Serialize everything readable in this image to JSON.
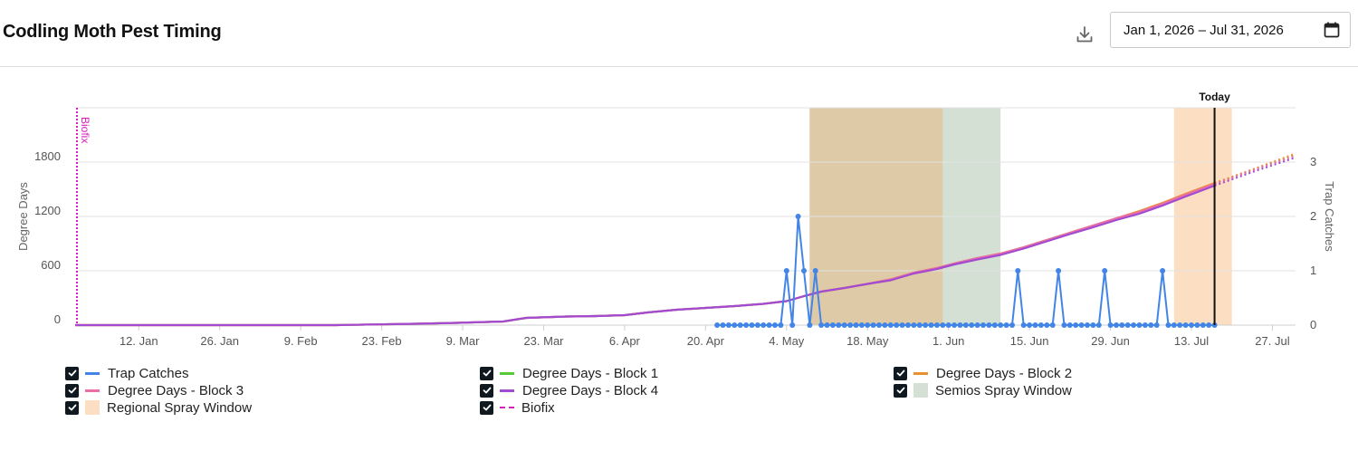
{
  "header": {
    "title": "Codling Moth Pest Timing",
    "date_range": "Jan 1, 2026 – Jul 31, 2026"
  },
  "chart_data": {
    "type": "line",
    "x_type": "date",
    "xlim": [
      "2026-01-01",
      "2026-07-31"
    ],
    "x_tick_labels": [
      "12. Jan",
      "26. Jan",
      "9. Feb",
      "23. Feb",
      "9. Mar",
      "23. Mar",
      "6. Apr",
      "20. Apr",
      "4. May",
      "18. May",
      "1. Jun",
      "15. Jun",
      "29. Jun",
      "13. Jul",
      "27. Jul"
    ],
    "x_ticks": [
      "2026-01-12",
      "2026-01-26",
      "2026-02-09",
      "2026-02-23",
      "2026-03-09",
      "2026-03-23",
      "2026-04-06",
      "2026-04-20",
      "2026-05-04",
      "2026-05-18",
      "2026-06-01",
      "2026-06-15",
      "2026-06-29",
      "2026-07-13",
      "2026-07-27"
    ],
    "ylabel": "Degree Days",
    "ylim": [
      0,
      2400
    ],
    "y_ticks": [
      0,
      600,
      1200,
      1800
    ],
    "ylabel_right": "Trap Catches",
    "ylim_right": [
      0,
      4
    ],
    "y_ticks_right": [
      0,
      1,
      2,
      3
    ],
    "grid": true,
    "today": {
      "label": "Today",
      "date": "2026-07-17"
    },
    "biofix": {
      "label": "Biofix",
      "date": "2026-01-01"
    },
    "bands": [
      {
        "name": "Semios Spray Window",
        "start": "2026-05-08",
        "end": "2026-06-10",
        "color": "#d4e0d4"
      },
      {
        "name": "Regional Spray Window",
        "start": "2026-05-08",
        "end": "2026-05-31",
        "color": "#fcdfc3"
      },
      {
        "name": "Regional Spray Window",
        "start": "2026-07-10",
        "end": "2026-07-20",
        "color": "#fcdfc3"
      }
    ],
    "overlap_color": "#dfcaa8",
    "degree_days": {
      "dates": [
        "2026-01-01",
        "2026-02-15",
        "2026-03-01",
        "2026-03-08",
        "2026-03-16",
        "2026-03-20",
        "2026-03-27",
        "2026-04-01",
        "2026-04-06",
        "2026-04-10",
        "2026-04-15",
        "2026-04-20",
        "2026-04-25",
        "2026-04-30",
        "2026-05-04",
        "2026-05-07",
        "2026-05-10",
        "2026-05-14",
        "2026-05-18",
        "2026-05-22",
        "2026-05-26",
        "2026-05-30",
        "2026-06-02",
        "2026-06-06",
        "2026-06-10",
        "2026-06-14",
        "2026-06-18",
        "2026-06-22",
        "2026-06-26",
        "2026-06-30",
        "2026-07-04",
        "2026-07-08",
        "2026-07-12",
        "2026-07-17"
      ],
      "forecast_dates": [
        "2026-07-17",
        "2026-07-24",
        "2026-07-31"
      ]
    },
    "series": [
      {
        "name": "Trap Catches",
        "axis": "right",
        "color": "#4285e6",
        "style": "line-markers",
        "dates": [
          "2026-04-22",
          "2026-05-02",
          "2026-05-04",
          "2026-05-05",
          "2026-05-06",
          "2026-05-07",
          "2026-05-08",
          "2026-05-09",
          "2026-06-12",
          "2026-06-13",
          "2026-06-14",
          "2026-06-19",
          "2026-06-20",
          "2026-06-21",
          "2026-06-27",
          "2026-06-28",
          "2026-06-29",
          "2026-07-07",
          "2026-07-08",
          "2026-07-09",
          "2026-07-17"
        ],
        "values": [
          0,
          0,
          1,
          0,
          2,
          1,
          0,
          1,
          0,
          1,
          0,
          0,
          1,
          0,
          0,
          1,
          0,
          0,
          1,
          0,
          0
        ]
      },
      {
        "name": "Degree Days - Block 1",
        "axis": "left",
        "color": "#5ac83c",
        "values": [
          0,
          0,
          15,
          25,
          40,
          80,
          95,
          100,
          110,
          140,
          170,
          190,
          210,
          235,
          265,
          320,
          370,
          410,
          455,
          505,
          580,
          630,
          680,
          740,
          790,
          860,
          940,
          1020,
          1100,
          1180,
          1250,
          1340,
          1440,
          1560
        ],
        "forecast": [
          1560,
          1720,
          1880
        ]
      },
      {
        "name": "Degree Days - Block 2",
        "axis": "left",
        "color": "#ea9030",
        "values": [
          0,
          0,
          15,
          25,
          40,
          80,
          95,
          100,
          110,
          140,
          170,
          190,
          210,
          235,
          265,
          320,
          370,
          410,
          455,
          505,
          580,
          630,
          680,
          740,
          790,
          860,
          940,
          1020,
          1100,
          1180,
          1260,
          1350,
          1450,
          1570
        ],
        "forecast": [
          1570,
          1730,
          1895
        ]
      },
      {
        "name": "Degree Days - Block 3",
        "axis": "left",
        "color": "#ea6fa9",
        "values": [
          0,
          0,
          15,
          25,
          40,
          80,
          95,
          100,
          110,
          140,
          170,
          190,
          210,
          235,
          265,
          320,
          370,
          410,
          455,
          505,
          580,
          630,
          680,
          740,
          790,
          860,
          940,
          1020,
          1100,
          1180,
          1250,
          1340,
          1440,
          1560
        ],
        "forecast": [
          1560,
          1720,
          1870
        ]
      },
      {
        "name": "Degree Days - Block 4",
        "axis": "left",
        "color": "#a24bd1",
        "values": [
          0,
          0,
          15,
          25,
          40,
          80,
          95,
          100,
          110,
          140,
          170,
          190,
          210,
          235,
          265,
          320,
          370,
          410,
          455,
          495,
          570,
          620,
          670,
          725,
          775,
          845,
          925,
          1005,
          1080,
          1160,
          1230,
          1320,
          1420,
          1540
        ],
        "forecast": [
          1540,
          1700,
          1850
        ]
      }
    ],
    "legend_position": "bottom"
  },
  "legend": {
    "items": [
      {
        "label": "Trap Catches",
        "kind": "line",
        "color": "#4285e6"
      },
      {
        "label": "Degree Days - Block 1",
        "kind": "line",
        "color": "#5ac83c"
      },
      {
        "label": "Degree Days - Block 2",
        "kind": "line",
        "color": "#ea9030"
      },
      {
        "label": "Degree Days - Block 3",
        "kind": "line",
        "color": "#ea6fa9"
      },
      {
        "label": "Degree Days - Block 4",
        "kind": "line",
        "color": "#a24bd1"
      },
      {
        "label": "Semios Spray Window",
        "kind": "box",
        "color": "#d4e0d4"
      },
      {
        "label": "Regional Spray Window",
        "kind": "box",
        "color": "#fcdfc3"
      },
      {
        "label": "Biofix",
        "kind": "dash",
        "color": "#d61fb8"
      }
    ]
  },
  "icons": {
    "download": "download-icon",
    "calendar": "calendar-icon",
    "checkbox": "checkmark-icon"
  }
}
